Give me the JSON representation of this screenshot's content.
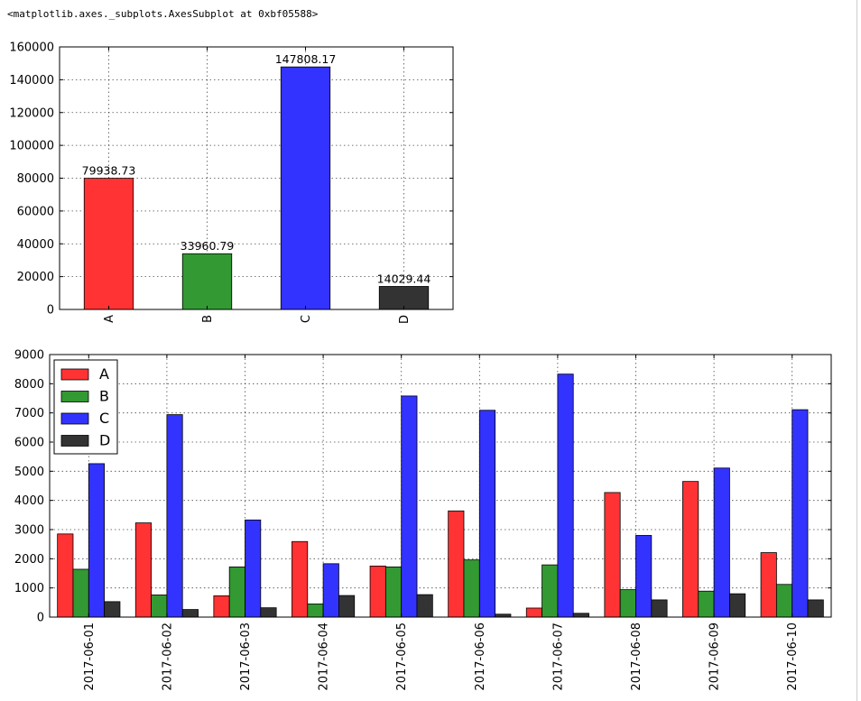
{
  "output_text": "<matplotlib.axes._subplots.AxesSubplot at 0xbf05588>",
  "chart_data": [
    {
      "type": "bar",
      "categories": [
        "A",
        "B",
        "C",
        "D"
      ],
      "values": [
        79938.73,
        33960.79,
        147808.17,
        14029.44
      ],
      "value_labels": [
        "79938.73",
        "33960.79",
        "147808.17",
        "14029.44"
      ],
      "colors": [
        "#ff3333",
        "#339933",
        "#3333ff",
        "#333333"
      ],
      "ylim": [
        0,
        160000
      ],
      "yticks": [
        0,
        20000,
        40000,
        60000,
        80000,
        100000,
        120000,
        140000,
        160000
      ],
      "grid": true,
      "title": "",
      "xlabel": "",
      "ylabel": ""
    },
    {
      "type": "bar",
      "categories": [
        "2017-06-01",
        "2017-06-02",
        "2017-06-03",
        "2017-06-04",
        "2017-06-05",
        "2017-06-06",
        "2017-06-07",
        "2017-06-08",
        "2017-06-09",
        "2017-06-10"
      ],
      "series": [
        {
          "name": "A",
          "color": "#ff3333",
          "values": [
            2850,
            3230,
            730,
            2590,
            1750,
            3640,
            310,
            4270,
            4650,
            2210
          ]
        },
        {
          "name": "B",
          "color": "#339933",
          "values": [
            1640,
            760,
            1720,
            450,
            1720,
            1960,
            1790,
            940,
            890,
            1120
          ]
        },
        {
          "name": "C",
          "color": "#3333ff",
          "values": [
            5260,
            6940,
            3330,
            1830,
            7580,
            7090,
            8330,
            2800,
            5110,
            7110
          ]
        },
        {
          "name": "D",
          "color": "#333333",
          "values": [
            530,
            260,
            320,
            740,
            770,
            100,
            130,
            590,
            800,
            590
          ]
        }
      ],
      "ylim": [
        0,
        9000
      ],
      "yticks": [
        0,
        1000,
        2000,
        3000,
        4000,
        5000,
        6000,
        7000,
        8000,
        9000
      ],
      "grid": true,
      "legend_position": "top-left",
      "title": "",
      "xlabel": "",
      "ylabel": ""
    }
  ]
}
